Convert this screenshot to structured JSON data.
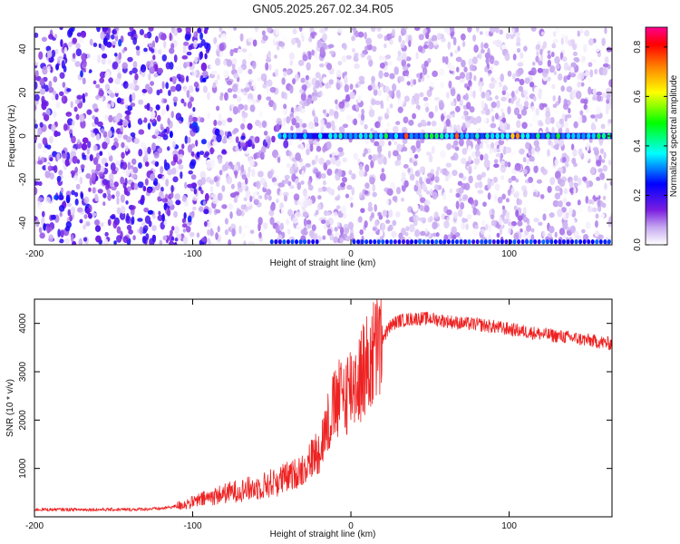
{
  "figure": {
    "title": "GN05.2025.267.02.34.R05"
  },
  "chart_data": [
    {
      "type": "heatmap",
      "title": "",
      "xlabel": "Height of straight line (km)",
      "ylabel": "Frequency (Hz)",
      "xlim": [
        -200,
        165
      ],
      "ylim": [
        -50,
        50
      ],
      "xticks": [
        -200,
        -100,
        0,
        100
      ],
      "xtick_labels": [
        "-200",
        "-100",
        "0",
        "100"
      ],
      "yticks": [
        -40,
        -20,
        0,
        20,
        40
      ],
      "ytick_labels": [
        "-40",
        "-20",
        "0",
        "20",
        "40"
      ],
      "colormap": [
        "#ffffff",
        "#c6a8f0",
        "#7a1ee0",
        "#0000ff",
        "#00ffff",
        "#00ff00",
        "#ffff00",
        "#ff8000",
        "#ff0000",
        "#ff0090"
      ],
      "colorbar": {
        "label": "Normalized spectral amplitude",
        "range": [
          0.0,
          0.88
        ],
        "ticks": [
          0.0,
          0.2,
          0.4,
          0.6,
          0.8
        ],
        "tick_labels": [
          "0.0",
          "0.2",
          "0.4",
          "0.6",
          "0.8"
        ]
      },
      "features": {
        "main_line_frequency_hz": 0,
        "main_line_start_km": -45,
        "main_line_end_km": 165,
        "alias_line_frequency_hz": -50,
        "noise_region_end_km": -90
      }
    },
    {
      "type": "line",
      "title": "",
      "xlabel": "Height of straight line (km)",
      "ylabel": "SNR (10 * v/v)",
      "xlim": [
        -200,
        165
      ],
      "ylim": [
        0,
        4500
      ],
      "xticks": [
        -200,
        -100,
        0,
        100
      ],
      "xtick_labels": [
        "-200",
        "-100",
        "0",
        "100"
      ],
      "yticks": [
        1000,
        2000,
        3000,
        4000
      ],
      "ytick_labels": [
        "1000",
        "2000",
        "3000",
        "4000"
      ],
      "series": [
        {
          "name": "SNR",
          "color": "#ee2222",
          "x": [
            -200,
            -180,
            -160,
            -140,
            -120,
            -110,
            -100,
            -90,
            -80,
            -70,
            -60,
            -50,
            -40,
            -30,
            -20,
            -15,
            -10,
            -5,
            0,
            5,
            10,
            15,
            20,
            25,
            30,
            40,
            50,
            60,
            70,
            80,
            90,
            100,
            110,
            120,
            130,
            140,
            150,
            160,
            165
          ],
          "y": [
            150,
            150,
            150,
            150,
            170,
            220,
            300,
            400,
            480,
            550,
            600,
            700,
            800,
            1000,
            1400,
            1900,
            2300,
            2500,
            2700,
            2900,
            3100,
            3400,
            3700,
            3950,
            4050,
            4100,
            4100,
            4050,
            4000,
            3980,
            3930,
            3880,
            3830,
            3780,
            3740,
            3700,
            3650,
            3600,
            3580
          ]
        }
      ]
    }
  ]
}
